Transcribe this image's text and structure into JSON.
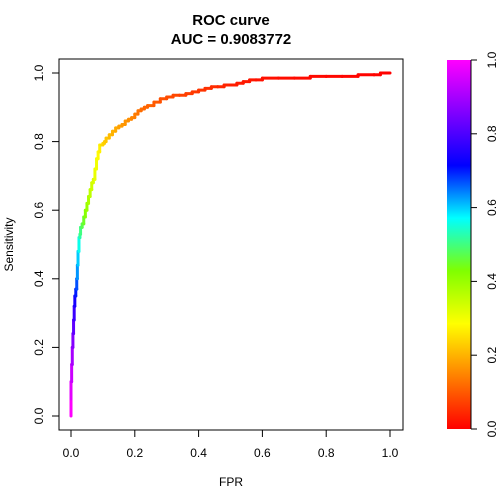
{
  "chart_data": {
    "type": "line",
    "title": "ROC curve",
    "subtitle": "AUC = 0.9083772",
    "xlabel": "FPR",
    "ylabel": "Sensitivity",
    "xlim": [
      0,
      1
    ],
    "ylim": [
      0,
      1
    ],
    "x_ticks": [
      "0.0",
      "0.2",
      "0.4",
      "0.6",
      "0.8",
      "1.0"
    ],
    "y_ticks": [
      "0.0",
      "0.2",
      "0.4",
      "0.6",
      "0.8",
      "1.0"
    ],
    "grid": false,
    "legend": "colorbar-right",
    "colorbar": {
      "ticks": [
        "0.0",
        "0.2",
        "0.4",
        "0.6",
        "0.8",
        "1.0"
      ],
      "range": [
        0,
        1
      ],
      "colors": [
        "#ff0000",
        "#ff8000",
        "#ffff00",
        "#80ff00",
        "#00ffff",
        "#0000ff",
        "#8000ff",
        "#ff00ff"
      ]
    },
    "series": [
      {
        "x": [
          0.0,
          0.0,
          0.002,
          0.004,
          0.006,
          0.008,
          0.01,
          0.012,
          0.015,
          0.018,
          0.02,
          0.022,
          0.025,
          0.028,
          0.03,
          0.035,
          0.04,
          0.045,
          0.05,
          0.055,
          0.06,
          0.065,
          0.07,
          0.075,
          0.08,
          0.085,
          0.09,
          0.095,
          0.1,
          0.105,
          0.11,
          0.12,
          0.13,
          0.14,
          0.15,
          0.16,
          0.17,
          0.18,
          0.19,
          0.2,
          0.21,
          0.22,
          0.23,
          0.24,
          0.26,
          0.28,
          0.3,
          0.32,
          0.34,
          0.36,
          0.38,
          0.4,
          0.42,
          0.44,
          0.46,
          0.48,
          0.5,
          0.52,
          0.54,
          0.56,
          0.58,
          0.6,
          0.65,
          0.7,
          0.75,
          0.8,
          0.85,
          0.9,
          0.95,
          0.97,
          0.99,
          1.0
        ],
        "y": [
          0.0,
          0.05,
          0.1,
          0.15,
          0.2,
          0.24,
          0.28,
          0.32,
          0.35,
          0.37,
          0.4,
          0.44,
          0.48,
          0.52,
          0.53,
          0.55,
          0.56,
          0.58,
          0.6,
          0.62,
          0.64,
          0.66,
          0.68,
          0.69,
          0.72,
          0.75,
          0.77,
          0.79,
          0.79,
          0.795,
          0.8,
          0.81,
          0.82,
          0.83,
          0.84,
          0.845,
          0.85,
          0.86,
          0.865,
          0.87,
          0.88,
          0.89,
          0.895,
          0.9,
          0.905,
          0.915,
          0.925,
          0.93,
          0.935,
          0.935,
          0.94,
          0.945,
          0.95,
          0.955,
          0.96,
          0.96,
          0.965,
          0.965,
          0.97,
          0.975,
          0.98,
          0.98,
          0.985,
          0.985,
          0.985,
          0.99,
          0.99,
          0.99,
          0.995,
          0.995,
          1.0,
          1.0
        ],
        "threshold": [
          1.0,
          0.97,
          0.94,
          0.9,
          0.86,
          0.82,
          0.78,
          0.74,
          0.7,
          0.67,
          0.63,
          0.6,
          0.56,
          0.52,
          0.5,
          0.47,
          0.45,
          0.42,
          0.4,
          0.38,
          0.36,
          0.34,
          0.33,
          0.31,
          0.3,
          0.28,
          0.27,
          0.25,
          0.24,
          0.23,
          0.22,
          0.21,
          0.2,
          0.19,
          0.18,
          0.17,
          0.165,
          0.16,
          0.15,
          0.14,
          0.13,
          0.12,
          0.115,
          0.11,
          0.1,
          0.09,
          0.085,
          0.08,
          0.075,
          0.07,
          0.065,
          0.06,
          0.055,
          0.05,
          0.045,
          0.04,
          0.035,
          0.03,
          0.028,
          0.025,
          0.02,
          0.018,
          0.015,
          0.012,
          0.01,
          0.008,
          0.006,
          0.004,
          0.003,
          0.002,
          0.001,
          0.0
        ]
      }
    ]
  }
}
